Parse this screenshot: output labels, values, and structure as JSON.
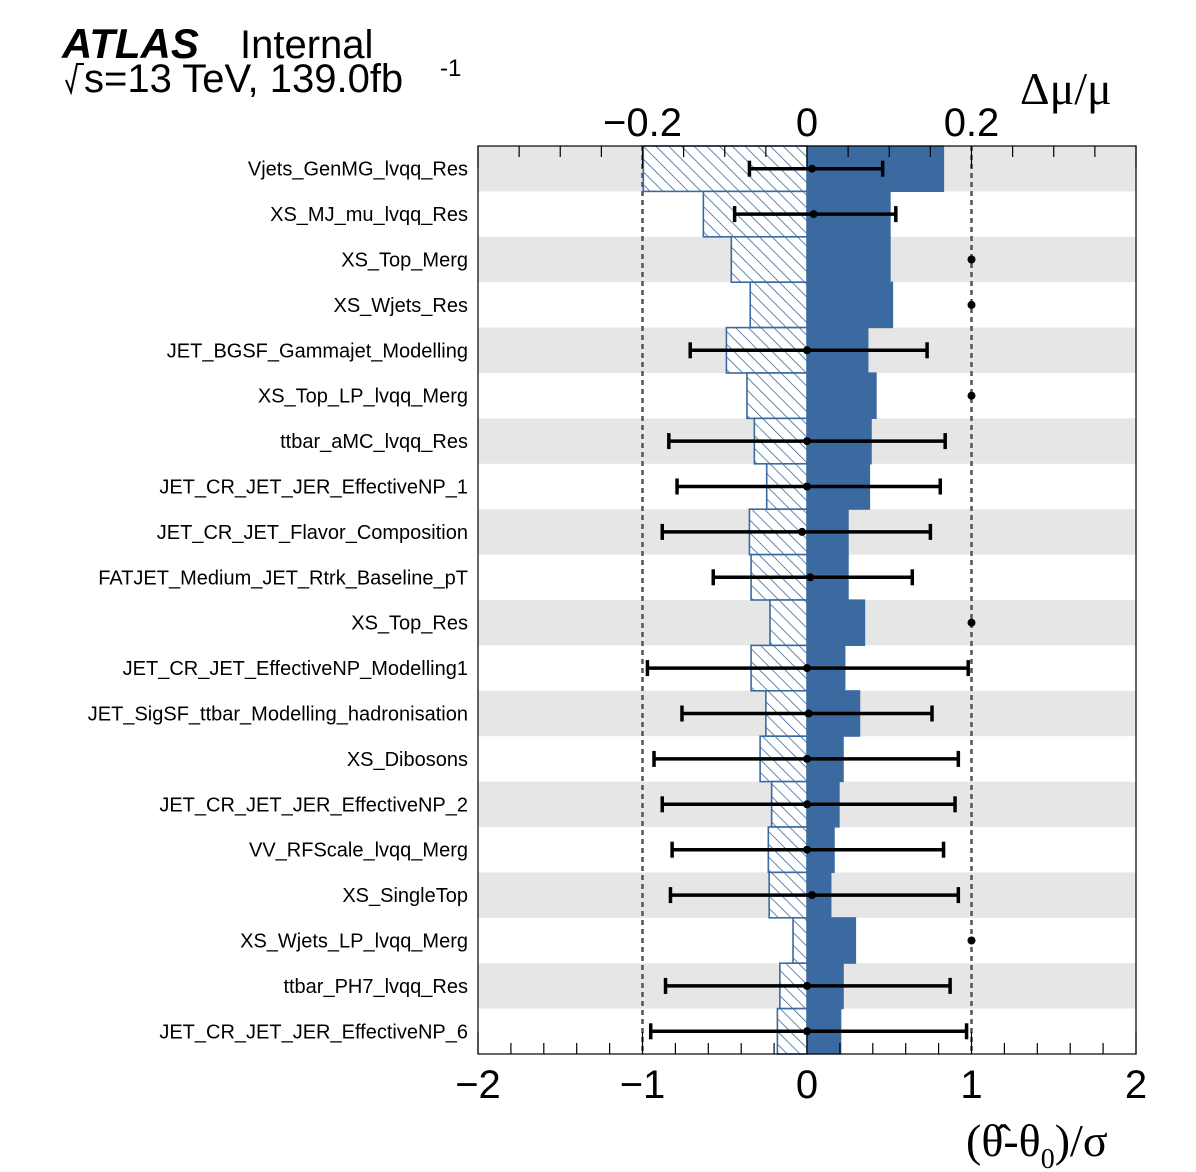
{
  "header": {
    "experiment": "ATLAS",
    "status": "Internal",
    "energy_prefix": "s=13 TeV, 139.0fb",
    "lumi_exponent": "-1"
  },
  "colors": {
    "impact": "#3b6aa0",
    "band": "#e6e6e6",
    "pull": "#000000",
    "guide": "#555555"
  },
  "chart_data": {
    "type": "bar",
    "orientation": "horizontal",
    "top_axis": {
      "title": "Δμ/μ",
      "range": [
        -0.2,
        0.2
      ],
      "ticks": [
        "−0.2",
        "0",
        "0.2"
      ],
      "tick_values": [
        -0.2,
        0,
        0.2
      ]
    },
    "bottom_axis": {
      "title": "(θ̂-θ",
      "title_sub": "0",
      "title_tail": ")/σ",
      "range": [
        -2,
        2
      ],
      "ticks": [
        "−2",
        "−1",
        "0",
        "1",
        "2"
      ],
      "tick_values": [
        -2,
        -1,
        0,
        1,
        2
      ]
    },
    "impact_axis_range": [
      -0.4,
      0.4
    ],
    "guide_lines_pull": [
      -1,
      1
    ],
    "legend": "none",
    "categories": [
      "Vjets_GenMG_lvqq_Res",
      "XS_MJ_mu_lvqq_Res",
      "XS_Top_Merg",
      "XS_Wjets_Res",
      "JET_BGSF_Gammajet_Modelling",
      "XS_Top_LP_lvqq_Merg",
      "ttbar_aMC_lvqq_Res",
      "JET_CR_JET_JER_EffectiveNP_1",
      "JET_CR_JET_Flavor_Composition",
      "FATJET_Medium_JET_Rtrk_Baseline_pT",
      "XS_Top_Res",
      "JET_CR_JET_EffectiveNP_Modelling1",
      "JET_SigSF_ttbar_Modelling_hadronisation",
      "XS_Dibosons",
      "JET_CR_JET_JER_EffectiveNP_2",
      "VV_RFScale_lvqq_Merg",
      "XS_SingleTop",
      "XS_Wjets_LP_lvqq_Merg",
      "ttbar_PH7_lvqq_Res",
      "JET_CR_JET_JER_EffectiveNP_6"
    ],
    "series": [
      {
        "role": "postfit_impact_up",
        "values": [
          0.166,
          0.101,
          0.101,
          0.104,
          0.074,
          0.084,
          0.078,
          0.076,
          0.05,
          0.05,
          0.07,
          0.046,
          0.064,
          0.044,
          0.039,
          0.033,
          0.029,
          0.059,
          0.044,
          0.041
        ]
      },
      {
        "role": "postfit_impact_down",
        "values": [
          -0.199,
          -0.126,
          -0.092,
          -0.069,
          -0.098,
          -0.073,
          -0.064,
          -0.049,
          -0.07,
          -0.068,
          -0.045,
          -0.068,
          -0.05,
          -0.057,
          -0.043,
          -0.047,
          -0.046,
          -0.017,
          -0.033,
          -0.036
        ]
      },
      {
        "role": "pull",
        "values": [
          0.03,
          0.04,
          1.0,
          1.0,
          0.0,
          1.0,
          0.0,
          0.0,
          -0.03,
          0.02,
          1.0,
          0.0,
          0.01,
          0.0,
          0.0,
          0.0,
          0.03,
          1.0,
          0.0,
          0.0
        ]
      },
      {
        "role": "pull_error_low",
        "values": [
          -0.35,
          -0.44,
          null,
          null,
          -0.71,
          null,
          -0.84,
          -0.79,
          -0.88,
          -0.57,
          null,
          -0.97,
          -0.76,
          -0.93,
          -0.88,
          -0.82,
          -0.83,
          null,
          -0.86,
          -0.95
        ]
      },
      {
        "role": "pull_error_high",
        "values": [
          0.46,
          0.54,
          null,
          null,
          0.73,
          null,
          0.84,
          0.81,
          0.75,
          0.64,
          null,
          0.98,
          0.76,
          0.92,
          0.9,
          0.83,
          0.92,
          null,
          0.87,
          0.97
        ]
      }
    ]
  }
}
